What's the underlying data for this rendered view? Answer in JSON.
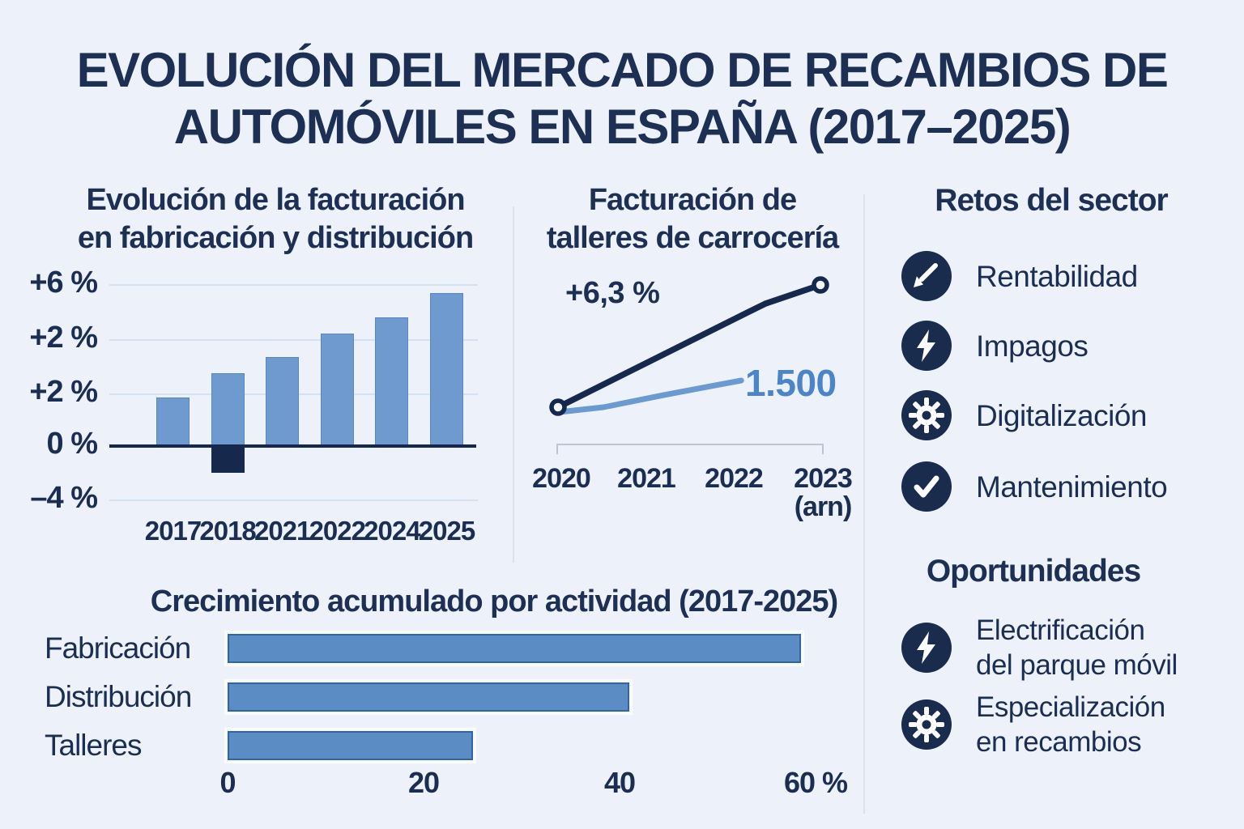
{
  "page": {
    "title_line1": "EVOLUCIÓN DEL MERCADO DE RECAMBIOS DE",
    "title_line2": "AUTOMÓVILES EN ESPAÑA (2017–2025)"
  },
  "colors": {
    "background": "#edf2fa",
    "navy_text": "#1d3054",
    "dark_navy": "#16294d",
    "icon_circle": "#1a2c4e",
    "vbar_fill": "#6e9ad0",
    "vbar_border": "#5b87c0",
    "hbar_fill": "#5b8dc4",
    "hbar_border": "#2e64a8",
    "gridline": "#d3e2f2",
    "divider": "#d9e3f0",
    "bracket": "#b8c6d6",
    "line_blue": "#6b9ad1",
    "annotation_blue": "#4c85c7"
  },
  "chart_data": [
    {
      "type": "bar",
      "title": "Evolución de la facturación en fabricación y distribución",
      "title_lines": [
        "Evolución de la facturación",
        "en fabricación y distribución"
      ],
      "categories": [
        "2017",
        "2018",
        "2021",
        "2022",
        "2024",
        "2025"
      ],
      "values": [
        1.8,
        2.7,
        3.3,
        4.2,
        4.8,
        5.7
      ],
      "negative_segments": [
        {
          "category": "2018",
          "value": -1.0
        }
      ],
      "y_tick_labels": [
        "+6 %",
        "+2 %",
        "+2 %",
        "0 %",
        "–4 %"
      ],
      "xlabel": "",
      "ylabel": "",
      "grid": "horizontal"
    },
    {
      "type": "line",
      "title": "Facturación de talleres de carrocería",
      "title_lines": [
        "Facturación de",
        "talleres de carrocería"
      ],
      "x": [
        "2020",
        "2021",
        "2022",
        "2023"
      ],
      "x_note": "(arn)",
      "series": [
        {
          "name": "crecimiento-facturacion",
          "annotation": "+6,3 %",
          "color": "#16294d",
          "marker": "hollow-circle-endpoints",
          "points": [
            [
              0,
              0.759
            ],
            [
              0.728,
              0.166
            ],
            [
              0.79,
              0.116
            ],
            [
              1,
              0
            ]
          ]
        },
        {
          "name": "numero-talleres",
          "annotation": "1.500",
          "color": "#6b9ad1",
          "marker": "none",
          "points": [
            [
              0.006,
              0.789
            ],
            [
              0.173,
              0.759
            ],
            [
              0.404,
              0.683
            ],
            [
              0.698,
              0.593
            ]
          ]
        }
      ],
      "points_encoding": "fraction of plot box, y measured from top",
      "legend_position": "inline-annotations"
    },
    {
      "type": "bar-horizontal",
      "title": "Crecimiento acumulado por actividad (2017-2025)",
      "categories": [
        "Fabricación",
        "Distribución",
        "Talleres"
      ],
      "values": [
        58.5,
        41,
        25
      ],
      "x_tick_labels": [
        "0",
        "20",
        "40",
        "60 %"
      ],
      "xlim": [
        0,
        60
      ],
      "grid": "off"
    }
  ],
  "challenges": {
    "heading": "Retos del sector",
    "items": [
      {
        "icon": "trending-down-icon",
        "label": "Rentabilidad"
      },
      {
        "icon": "lightning-icon",
        "label": "Impagos"
      },
      {
        "icon": "gear-icon",
        "label": "Digitalización"
      },
      {
        "icon": "check-icon",
        "label": "Mantenimiento"
      }
    ]
  },
  "opportunities": {
    "heading": "Oportunidades",
    "items": [
      {
        "icon": "lightning-icon",
        "label_lines": [
          "Electrificación",
          "del parque móvil"
        ]
      },
      {
        "icon": "gear-icon",
        "label_lines": [
          "Especialización",
          "en recambios"
        ]
      }
    ]
  }
}
